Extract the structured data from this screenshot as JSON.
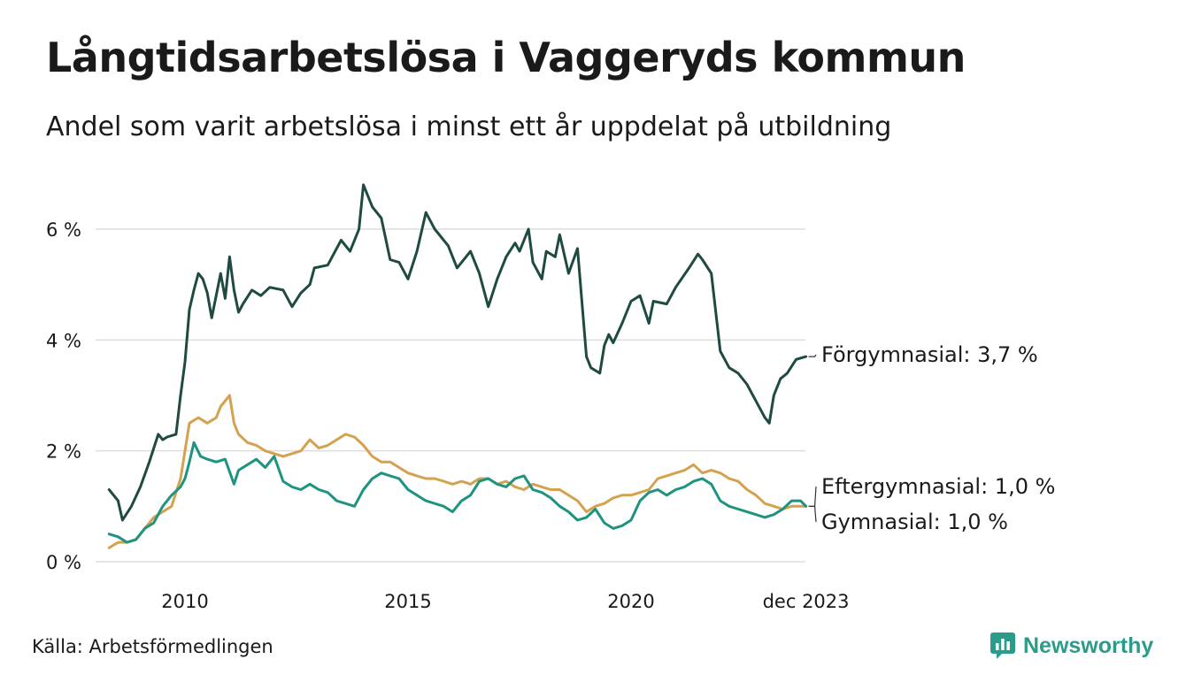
{
  "title": "Långtidsarbetslösa i Vaggeryds kommun",
  "subtitle": "Andel som varit arbetslösa i minst ett år uppdelat på utbildning",
  "source": "Källa: Arbetsförmedlingen",
  "brand": {
    "name": "Newsworthy",
    "icon": "newsworthy-logo-icon",
    "color": "#2b9c8a"
  },
  "chart_data": {
    "type": "line",
    "title": "Långtidsarbetslösa i Vaggeryds kommun",
    "xlabel": "",
    "ylabel": "",
    "ylim": [
      0,
      7
    ],
    "xlim": [
      2008.3,
      2023.92
    ],
    "y_ticks": [
      0,
      2,
      4,
      6
    ],
    "y_tick_labels": [
      "0 %",
      "2 %",
      "4 %",
      "6 %"
    ],
    "x_ticks": [
      2010,
      2015,
      2020,
      2023.92
    ],
    "x_tick_labels": [
      "2010",
      "2015",
      "2020",
      "dec 2023"
    ],
    "grid": true,
    "series": [
      {
        "name": "Förgymnasial",
        "end_label": "Förgymnasial: 3,7 %",
        "color": "#1f4a42",
        "x": [
          2008.3,
          2008.5,
          2008.6,
          2008.8,
          2009.0,
          2009.2,
          2009.4,
          2009.5,
          2009.6,
          2009.8,
          2009.9,
          2010.0,
          2010.1,
          2010.2,
          2010.3,
          2010.4,
          2010.5,
          2010.6,
          2010.8,
          2010.9,
          2011.0,
          2011.1,
          2011.2,
          2011.3,
          2011.5,
          2011.7,
          2011.9,
          2012.2,
          2012.4,
          2012.6,
          2012.8,
          2012.9,
          2013.2,
          2013.5,
          2013.7,
          2013.9,
          2014.0,
          2014.2,
          2014.4,
          2014.6,
          2014.8,
          2015.0,
          2015.2,
          2015.4,
          2015.6,
          2015.9,
          2016.1,
          2016.4,
          2016.6,
          2016.8,
          2017.0,
          2017.2,
          2017.4,
          2017.5,
          2017.7,
          2017.8,
          2018.0,
          2018.1,
          2018.3,
          2018.4,
          2018.6,
          2018.8,
          2019.0,
          2019.1,
          2019.3,
          2019.4,
          2019.5,
          2019.6,
          2019.8,
          2020.0,
          2020.2,
          2020.4,
          2020.5,
          2020.8,
          2021.0,
          2021.3,
          2021.5,
          2021.6,
          2021.8,
          2022.0,
          2022.2,
          2022.4,
          2022.6,
          2022.8,
          2023.0,
          2023.1,
          2023.2,
          2023.35,
          2023.5,
          2023.7,
          2023.92
        ],
        "values": [
          1.3,
          1.1,
          0.75,
          1.0,
          1.35,
          1.8,
          2.3,
          2.2,
          2.25,
          2.3,
          3.0,
          3.6,
          4.55,
          4.9,
          5.2,
          5.1,
          4.85,
          4.4,
          5.2,
          4.75,
          5.5,
          4.9,
          4.5,
          4.65,
          4.9,
          4.8,
          4.95,
          4.9,
          4.6,
          4.85,
          5.0,
          5.3,
          5.35,
          5.8,
          5.6,
          6.0,
          6.8,
          6.4,
          6.2,
          5.45,
          5.4,
          5.1,
          5.6,
          6.3,
          6.0,
          5.7,
          5.3,
          5.6,
          5.2,
          4.6,
          5.1,
          5.5,
          5.75,
          5.6,
          6.0,
          5.4,
          5.1,
          5.6,
          5.5,
          5.9,
          5.2,
          5.65,
          3.7,
          3.5,
          3.4,
          3.9,
          4.1,
          3.95,
          4.3,
          4.7,
          4.8,
          4.3,
          4.7,
          4.65,
          4.95,
          5.3,
          5.55,
          5.45,
          5.2,
          3.8,
          3.5,
          3.4,
          3.2,
          2.9,
          2.6,
          2.5,
          3.0,
          3.3,
          3.4,
          3.65,
          3.7
        ]
      },
      {
        "name": "Eftergymnasial",
        "end_label": "Eftergymnasial: 1,0 %",
        "color": "#d4a24f",
        "x": [
          2008.3,
          2008.5,
          2008.7,
          2008.9,
          2009.1,
          2009.3,
          2009.5,
          2009.7,
          2009.9,
          2010.0,
          2010.1,
          2010.3,
          2010.5,
          2010.7,
          2010.8,
          2011.0,
          2011.1,
          2011.2,
          2011.4,
          2011.6,
          2011.8,
          2012.0,
          2012.2,
          2012.4,
          2012.6,
          2012.8,
          2013.0,
          2013.2,
          2013.4,
          2013.6,
          2013.8,
          2014.0,
          2014.2,
          2014.4,
          2014.6,
          2014.8,
          2015.0,
          2015.2,
          2015.4,
          2015.6,
          2015.8,
          2016.0,
          2016.2,
          2016.4,
          2016.6,
          2016.8,
          2017.0,
          2017.2,
          2017.4,
          2017.6,
          2017.8,
          2018.0,
          2018.2,
          2018.4,
          2018.6,
          2018.8,
          2019.0,
          2019.2,
          2019.4,
          2019.6,
          2019.8,
          2020.0,
          2020.2,
          2020.4,
          2020.6,
          2020.8,
          2021.0,
          2021.2,
          2021.4,
          2021.6,
          2021.8,
          2022.0,
          2022.2,
          2022.4,
          2022.6,
          2022.8,
          2023.0,
          2023.2,
          2023.4,
          2023.6,
          2023.92
        ],
        "values": [
          0.25,
          0.35,
          0.35,
          0.4,
          0.6,
          0.8,
          0.9,
          1.0,
          1.5,
          2.0,
          2.5,
          2.6,
          2.5,
          2.6,
          2.8,
          3.0,
          2.5,
          2.3,
          2.15,
          2.1,
          2.0,
          1.95,
          1.9,
          1.95,
          2.0,
          2.2,
          2.05,
          2.1,
          2.2,
          2.3,
          2.25,
          2.1,
          1.9,
          1.8,
          1.8,
          1.7,
          1.6,
          1.55,
          1.5,
          1.5,
          1.45,
          1.4,
          1.45,
          1.4,
          1.5,
          1.5,
          1.4,
          1.45,
          1.35,
          1.3,
          1.4,
          1.35,
          1.3,
          1.3,
          1.2,
          1.1,
          0.9,
          1.0,
          1.05,
          1.15,
          1.2,
          1.2,
          1.25,
          1.3,
          1.5,
          1.55,
          1.6,
          1.65,
          1.75,
          1.6,
          1.65,
          1.6,
          1.5,
          1.45,
          1.3,
          1.2,
          1.05,
          1.0,
          0.95,
          1.0,
          1.0
        ]
      },
      {
        "name": "Gymnasial",
        "end_label": "Gymnasial: 1,0 %",
        "color": "#1e9480",
        "x": [
          2008.3,
          2008.5,
          2008.7,
          2008.9,
          2009.1,
          2009.3,
          2009.5,
          2009.7,
          2009.9,
          2010.0,
          2010.1,
          2010.2,
          2010.35,
          2010.5,
          2010.7,
          2010.9,
          2011.1,
          2011.2,
          2011.4,
          2011.6,
          2011.8,
          2012.0,
          2012.2,
          2012.4,
          2012.6,
          2012.8,
          2013.0,
          2013.2,
          2013.4,
          2013.6,
          2013.8,
          2014.0,
          2014.2,
          2014.4,
          2014.6,
          2014.8,
          2015.0,
          2015.2,
          2015.4,
          2015.6,
          2015.8,
          2016.0,
          2016.2,
          2016.4,
          2016.6,
          2016.8,
          2017.0,
          2017.2,
          2017.4,
          2017.6,
          2017.8,
          2018.0,
          2018.2,
          2018.4,
          2018.6,
          2018.8,
          2019.0,
          2019.2,
          2019.4,
          2019.6,
          2019.8,
          2020.0,
          2020.2,
          2020.4,
          2020.6,
          2020.8,
          2021.0,
          2021.2,
          2021.4,
          2021.6,
          2021.8,
          2022.0,
          2022.2,
          2022.4,
          2022.6,
          2022.8,
          2023.0,
          2023.2,
          2023.4,
          2023.6,
          2023.8,
          2023.92
        ],
        "values": [
          0.5,
          0.45,
          0.35,
          0.4,
          0.6,
          0.7,
          1.0,
          1.2,
          1.35,
          1.5,
          1.8,
          2.15,
          1.9,
          1.85,
          1.8,
          1.85,
          1.4,
          1.65,
          1.75,
          1.85,
          1.7,
          1.9,
          1.45,
          1.35,
          1.3,
          1.4,
          1.3,
          1.25,
          1.1,
          1.05,
          1.0,
          1.3,
          1.5,
          1.6,
          1.55,
          1.5,
          1.3,
          1.2,
          1.1,
          1.05,
          1.0,
          0.9,
          1.1,
          1.2,
          1.45,
          1.5,
          1.4,
          1.35,
          1.5,
          1.55,
          1.3,
          1.25,
          1.15,
          1.0,
          0.9,
          0.75,
          0.8,
          0.95,
          0.7,
          0.6,
          0.65,
          0.75,
          1.1,
          1.25,
          1.3,
          1.2,
          1.3,
          1.35,
          1.45,
          1.5,
          1.4,
          1.1,
          1.0,
          0.95,
          0.9,
          0.85,
          0.8,
          0.85,
          0.95,
          1.1,
          1.1,
          1.0
        ]
      }
    ]
  }
}
